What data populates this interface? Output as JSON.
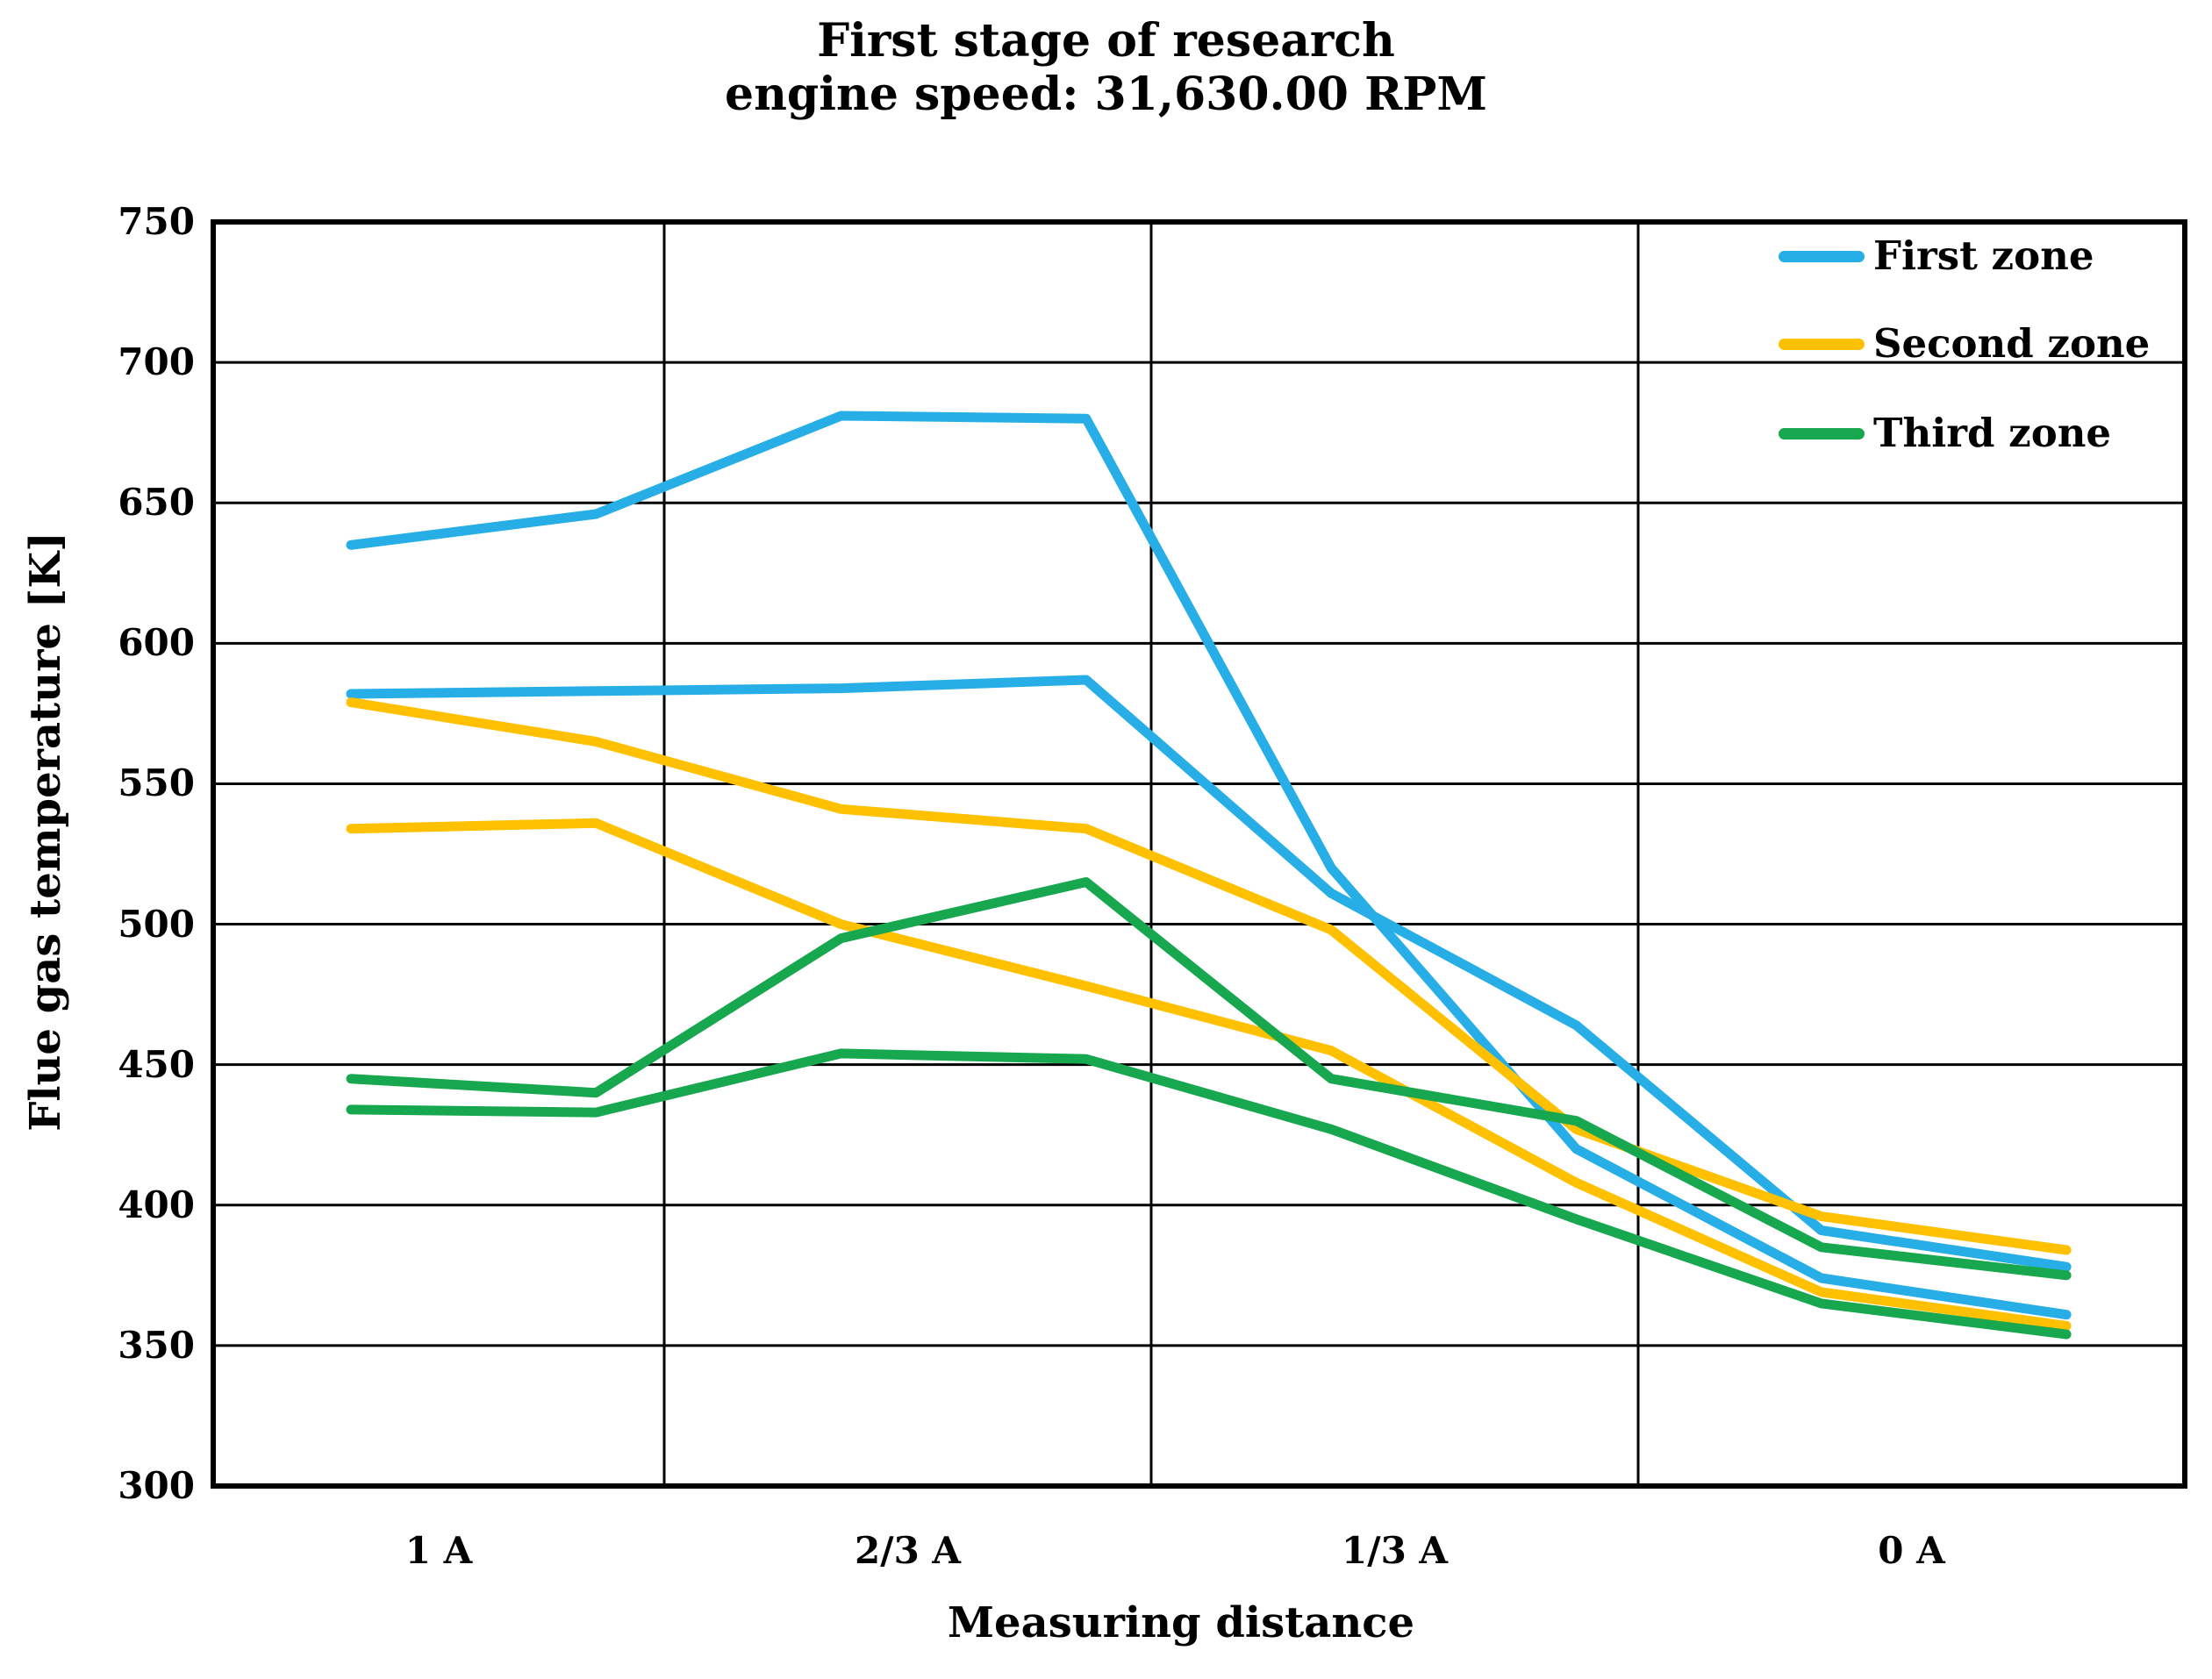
{
  "title": {
    "line1": "First stage of research",
    "line2": "engine speed: 31,630.00 RPM"
  },
  "y_axis": {
    "title": "Flue gas temperature [K]",
    "min": 300,
    "max": 750,
    "step": 50,
    "tick_labels": [
      "750",
      "700",
      "650",
      "600",
      "550",
      "500",
      "450",
      "400",
      "350",
      "300"
    ]
  },
  "x_axis": {
    "title": "Measuring distance",
    "tick_labels": [
      "1 A",
      "2/3 A",
      "1/3 A",
      "0 A"
    ]
  },
  "legend": [
    {
      "label": "First zone",
      "color": "#27AEE6"
    },
    {
      "label": "Second zone",
      "color": "#FFC000"
    },
    {
      "label": "Third zone",
      "color": "#17A74E"
    }
  ],
  "colors": {
    "grid": "#000000",
    "border": "#000000",
    "background": "#FFFFFF"
  },
  "chart_data": {
    "type": "line",
    "title": "First stage of research — engine speed: 31,630.00 RPM",
    "xlabel": "Measuring distance",
    "ylabel": "Flue gas temperature [K]",
    "ylim": [
      300,
      750
    ],
    "y_major_step": 50,
    "grid": "both",
    "legend_position": "top-right-inside",
    "x_categories": [
      "1 A",
      "2/3 A",
      "1/3 A",
      "0 A"
    ],
    "points_per_category": 2,
    "x_point_labels": [
      "1 A (1)",
      "1 A (2)",
      "2/3 A (1)",
      "2/3 A (2)",
      "1/3 A (1)",
      "1/3 A (2)",
      "0 A (1)",
      "0 A (2)"
    ],
    "series": [
      {
        "name": "First zone",
        "line": "upper",
        "color": "#27AEE6",
        "values": [
          635,
          646,
          681,
          680,
          520,
          420,
          374,
          361
        ]
      },
      {
        "name": "First zone",
        "line": "lower",
        "color": "#27AEE6",
        "values": [
          582,
          583,
          584,
          587,
          511,
          464,
          391,
          378
        ]
      },
      {
        "name": "Second zone",
        "line": "upper",
        "color": "#FFC000",
        "values": [
          579,
          565,
          541,
          534,
          498,
          427,
          396,
          384
        ]
      },
      {
        "name": "Second zone",
        "line": "lower",
        "color": "#FFC000",
        "values": [
          534,
          536,
          500,
          478,
          455,
          408,
          369,
          357
        ]
      },
      {
        "name": "Third zone",
        "line": "upper",
        "color": "#17A74E",
        "values": [
          445,
          440,
          495,
          515,
          445,
          430,
          385,
          375
        ]
      },
      {
        "name": "Third zone",
        "line": "lower",
        "color": "#17A74E",
        "values": [
          434,
          433,
          454,
          452,
          427,
          395,
          365,
          354
        ]
      }
    ]
  }
}
